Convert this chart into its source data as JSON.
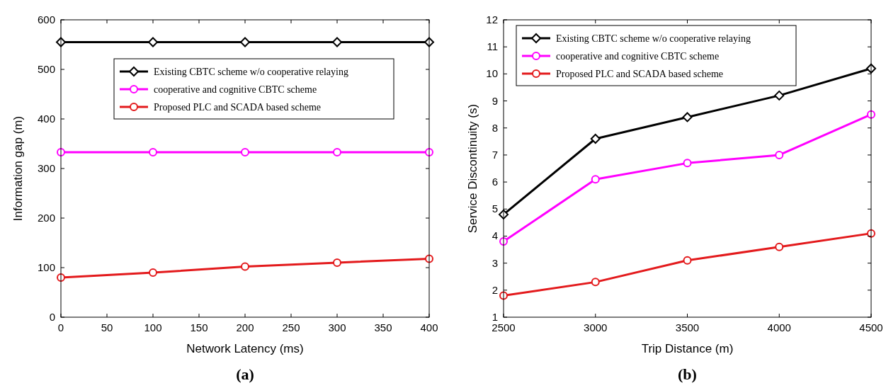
{
  "chart_data": [
    {
      "type": "line",
      "xlabel": "Network Latency (ms)",
      "ylabel": "Information gap (m)",
      "x": [
        0,
        100,
        200,
        300,
        400
      ],
      "xlim": [
        0,
        400
      ],
      "xticks": [
        0,
        50,
        100,
        150,
        200,
        250,
        300,
        350,
        400
      ],
      "ylim": [
        0,
        600
      ],
      "yticks": [
        0,
        100,
        200,
        300,
        400,
        500,
        600
      ],
      "legend": "top right",
      "annotations": [
        "(a)"
      ],
      "series": [
        {
          "name": "Existing CBTC scheme w/o cooperative relaying",
          "color": "#000000",
          "marker": "diamond",
          "values": [
            555,
            555,
            555,
            555,
            555
          ]
        },
        {
          "name": "cooperative and cognitive CBTC scheme",
          "color": "#ff00ff",
          "marker": "circle",
          "values": [
            333,
            333,
            333,
            333,
            333
          ]
        },
        {
          "name": "Proposed PLC and SCADA based scheme",
          "color": "#e31a1c",
          "marker": "circle",
          "values": [
            80,
            90,
            102,
            110,
            118
          ]
        }
      ]
    },
    {
      "type": "line",
      "xlabel": "Trip Distance (m)",
      "ylabel": "Service Discontinuity (s)",
      "x": [
        2500,
        3000,
        3500,
        4000,
        4500
      ],
      "xlim": [
        2500,
        4500
      ],
      "xticks": [
        2500,
        3000,
        3500,
        4000,
        4500
      ],
      "ylim": [
        1,
        12
      ],
      "yticks": [
        1,
        2,
        3,
        4,
        5,
        6,
        7,
        8,
        9,
        10,
        11,
        12
      ],
      "legend": "top left",
      "annotations": [
        "(b)"
      ],
      "series": [
        {
          "name": "Existing CBTC scheme w/o cooperative relaying",
          "color": "#000000",
          "marker": "diamond",
          "values": [
            4.8,
            7.6,
            8.4,
            9.2,
            10.2
          ]
        },
        {
          "name": "cooperative and cognitive CBTC scheme",
          "color": "#ff00ff",
          "marker": "circle",
          "values": [
            3.8,
            6.1,
            6.7,
            7.0,
            8.5
          ]
        },
        {
          "name": "Proposed PLC and SCADA based scheme",
          "color": "#e31a1c",
          "marker": "circle",
          "values": [
            1.8,
            2.3,
            3.1,
            3.6,
            4.1
          ]
        }
      ]
    }
  ]
}
